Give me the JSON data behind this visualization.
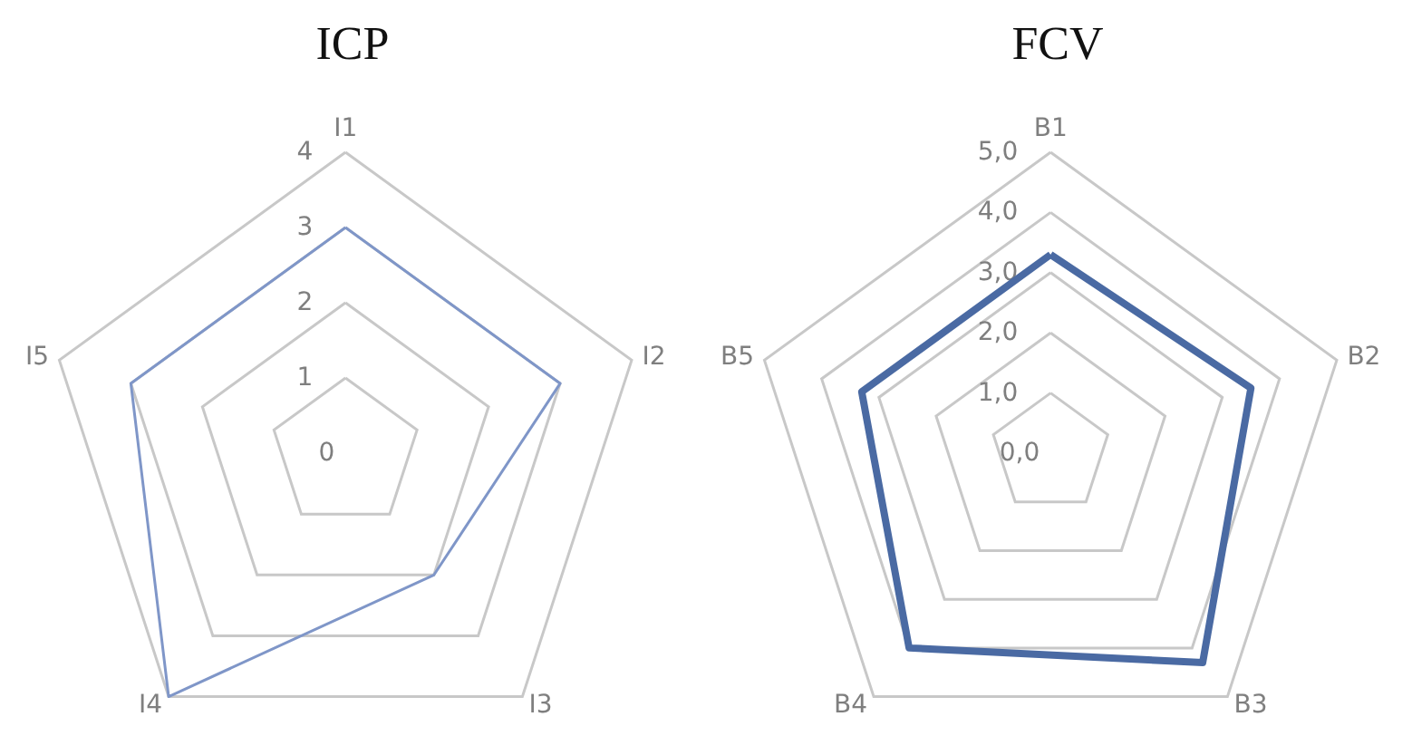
{
  "chart_data": [
    {
      "type": "radar",
      "title": "ICP",
      "categories": [
        "I1",
        "I2",
        "I3",
        "I4",
        "I5"
      ],
      "series": [
        {
          "color": "#7f96c8",
          "values": [
            3,
            3,
            2,
            4,
            3
          ]
        }
      ],
      "ylim": [
        0,
        4
      ],
      "yticks": [
        0,
        1,
        2,
        3,
        4
      ],
      "grid": true,
      "marker": "none"
    },
    {
      "type": "radar",
      "title": "FCV",
      "categories": [
        "B1",
        "B2",
        "B3",
        "B4",
        "B5"
      ],
      "series": [
        {
          "color": "#4a6aa3",
          "values": [
            3.3,
            3.5,
            4.3,
            4.0,
            3.3
          ]
        }
      ],
      "ylim": [
        0,
        5
      ],
      "yticks": [
        {
          "value": 0,
          "label": "0,0"
        },
        {
          "value": 1,
          "label": "1,0"
        },
        {
          "value": 2,
          "label": "2,0"
        },
        {
          "value": 3,
          "label": "3,0"
        },
        {
          "value": 4,
          "label": "4,0"
        },
        {
          "value": 5,
          "label": "5,0"
        }
      ],
      "grid": true,
      "marker": "none"
    }
  ]
}
